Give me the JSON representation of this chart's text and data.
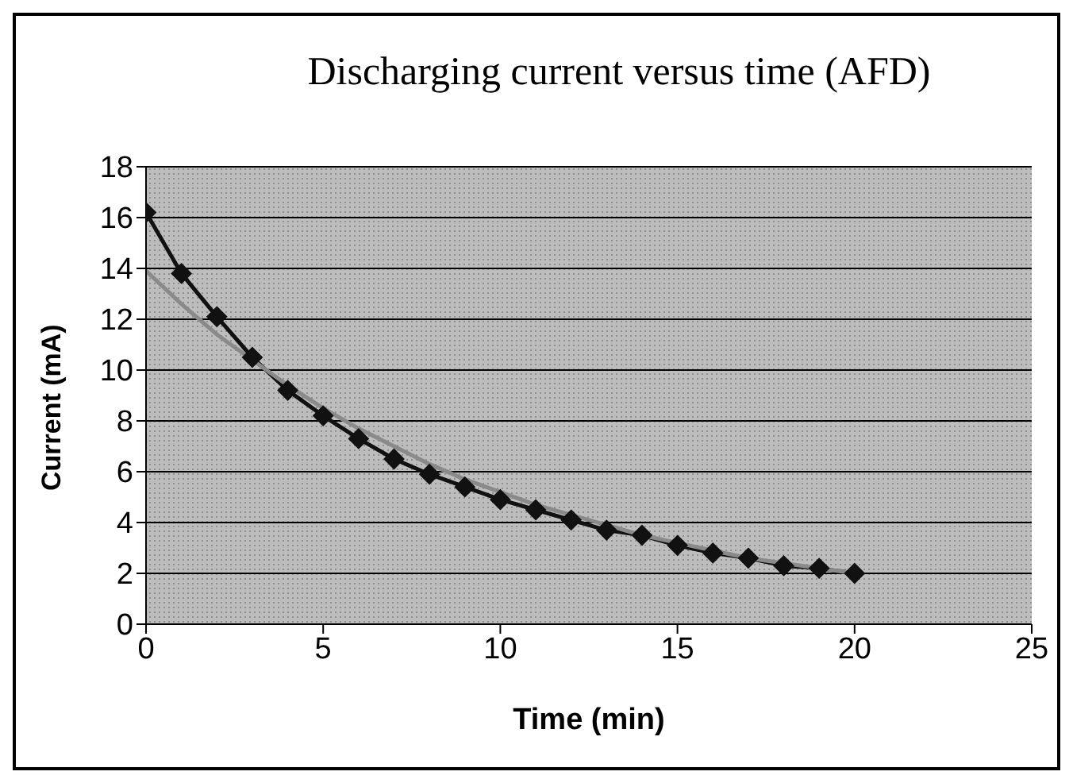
{
  "chart_data": {
    "type": "line",
    "title": "Discharging current versus time (AFD)",
    "xlabel": "Time (min)",
    "ylabel": "Current (mA)",
    "x": [
      0,
      1,
      2,
      3,
      4,
      5,
      6,
      7,
      8,
      9,
      10,
      11,
      12,
      13,
      14,
      15,
      16,
      17,
      18,
      19,
      20
    ],
    "series": [
      {
        "color": "#111111",
        "marker": "diamond",
        "values": [
          16.2,
          13.8,
          12.1,
          10.5,
          9.2,
          8.2,
          7.3,
          6.5,
          5.9,
          5.4,
          4.9,
          4.5,
          4.1,
          3.7,
          3.5,
          3.1,
          2.8,
          2.6,
          2.3,
          2.2,
          2.0
        ]
      },
      {
        "color": "#8a8a8a",
        "marker": "none",
        "values": [
          13.9,
          12.6,
          11.4,
          10.4,
          9.4,
          8.5,
          7.7,
          7.0,
          6.3,
          5.7,
          5.2,
          4.7,
          4.3,
          3.9,
          3.5,
          3.2,
          2.9,
          2.6,
          2.4,
          2.2,
          2.0
        ]
      }
    ],
    "xlim": [
      0,
      25
    ],
    "xticks": [
      0,
      5,
      10,
      15,
      20,
      25
    ],
    "ylim": [
      0,
      18
    ],
    "yticks": [
      0,
      2,
      4,
      6,
      8,
      10,
      12,
      14,
      16,
      18
    ],
    "grid": "y"
  }
}
